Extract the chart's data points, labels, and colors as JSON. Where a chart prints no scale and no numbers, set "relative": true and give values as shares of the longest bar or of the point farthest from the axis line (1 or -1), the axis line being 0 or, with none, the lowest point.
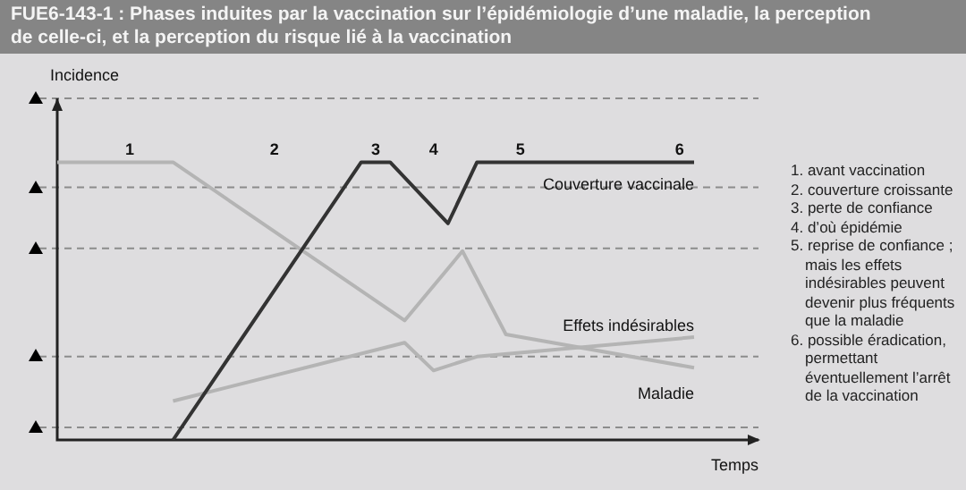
{
  "chart_data": {
    "type": "line",
    "title": "FUE6-143-1 : Phases induites par la vaccination sur l’épidémiologie d’une maladie, la perception de celle-ci, et la perception du risque lié à la vaccination",
    "xlabel": "Temps",
    "ylabel": "Incidence",
    "relative": true,
    "legend": false,
    "marker": "none",
    "line_style": "solid",
    "categories": [
      null,
      null,
      null,
      null,
      null,
      "1",
      null,
      null,
      null,
      null,
      null,
      null,
      null,
      null,
      null,
      "2",
      null,
      null,
      null,
      null,
      null,
      null,
      "3",
      null,
      null,
      null,
      "4",
      null,
      null,
      null,
      null,
      null,
      "5",
      null,
      null,
      null,
      null,
      null,
      null,
      null,
      null,
      null,
      null,
      "6",
      null
    ],
    "series": [
      {
        "name": "Couverture vaccinale",
        "color": "#333333",
        "values": [
          null,
          null,
          null,
          null,
          null,
          null,
          null,
          null,
          0,
          null,
          null,
          null,
          null,
          null,
          null,
          null,
          null,
          null,
          null,
          null,
          null,
          1,
          null,
          1,
          null,
          null,
          null,
          0.78,
          null,
          1,
          null,
          null,
          null,
          null,
          null,
          null,
          null,
          null,
          null,
          null,
          null,
          null,
          null,
          null,
          1
        ]
      },
      {
        "name": "Effets indésirables",
        "color": "#b4b4b4",
        "values": [
          null,
          null,
          null,
          null,
          null,
          null,
          null,
          null,
          0.14,
          null,
          null,
          null,
          null,
          null,
          null,
          null,
          null,
          null,
          null,
          null,
          null,
          null,
          null,
          null,
          0.35,
          null,
          0.25,
          null,
          null,
          0.3,
          null,
          null,
          null,
          null,
          null,
          null,
          null,
          null,
          null,
          null,
          null,
          null,
          null,
          null,
          0.37
        ]
      },
      {
        "name": "Maladie",
        "color": "#b4b4b4",
        "values": [
          1,
          null,
          null,
          null,
          null,
          null,
          null,
          null,
          1,
          null,
          null,
          null,
          null,
          null,
          null,
          null,
          null,
          null,
          null,
          null,
          null,
          null,
          null,
          null,
          0.43,
          null,
          null,
          null,
          0.68,
          null,
          null,
          0.38,
          null,
          null,
          null,
          null,
          null,
          null,
          null,
          null,
          null,
          null,
          null,
          null,
          0.26
        ]
      }
    ],
    "ref_lines": [
      {
        "axis": "y",
        "value": 1.23,
        "color": "#8c8c8c",
        "line_style": "dashed"
      },
      {
        "axis": "y",
        "value": 0.91,
        "color": "#8c8c8c",
        "line_style": "dashed"
      },
      {
        "axis": "y",
        "value": 0.69,
        "color": "#8c8c8c",
        "line_style": "dashed"
      },
      {
        "axis": "y",
        "value": 0.3,
        "color": "#8c8c8c",
        "line_style": "dashed"
      },
      {
        "axis": "y",
        "value": 0.045,
        "color": "#8c8c8c",
        "line_style": "dashed"
      }
    ],
    "annotations": [
      "1. avant vaccination",
      "2. couverture croissante",
      "3. perte de confiance",
      "4. d’où épidémie",
      "5. reprise de confiance ; mais les effets indésirables peuvent devenir plus fréquents que la maladie",
      "6. possible éradication, permettant éventuellement l’arrêt de la vaccination"
    ]
  }
}
